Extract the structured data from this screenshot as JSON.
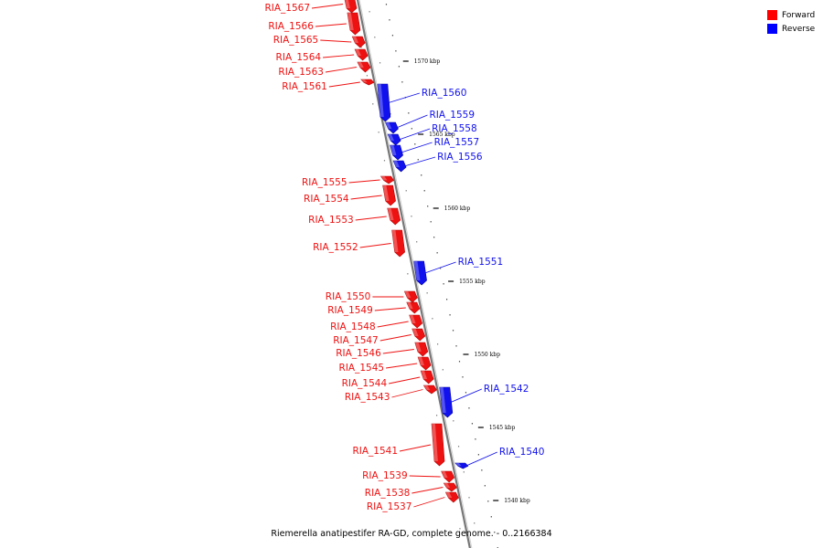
{
  "caption": "Riemerella anatipestifer RA-GD, complete genome. - 0..2166384",
  "legend": [
    {
      "label": "Forward",
      "color": "#ff0000"
    },
    {
      "label": "Reverse",
      "color": "#0000ff"
    }
  ],
  "colors": {
    "forward": "#ee1111",
    "reverse": "#1111ee",
    "axis": "#777777"
  },
  "scale_ticks": [
    "1570 kbp",
    "1565 kbp",
    "1560 kbp",
    "1555 kbp",
    "1550 kbp",
    "1545 kbp",
    "1540 kbp"
  ],
  "genes": [
    {
      "name": "RIA_1567",
      "strand": "forward"
    },
    {
      "name": "RIA_1566",
      "strand": "forward"
    },
    {
      "name": "RIA_1565",
      "strand": "forward"
    },
    {
      "name": "RIA_1564",
      "strand": "forward"
    },
    {
      "name": "RIA_1563",
      "strand": "forward"
    },
    {
      "name": "RIA_1561",
      "strand": "forward"
    },
    {
      "name": "RIA_1560",
      "strand": "reverse"
    },
    {
      "name": "RIA_1559",
      "strand": "reverse"
    },
    {
      "name": "RIA_1558",
      "strand": "reverse"
    },
    {
      "name": "RIA_1557",
      "strand": "reverse"
    },
    {
      "name": "RIA_1556",
      "strand": "reverse"
    },
    {
      "name": "RIA_1555",
      "strand": "forward"
    },
    {
      "name": "RIA_1554",
      "strand": "forward"
    },
    {
      "name": "RIA_1553",
      "strand": "forward"
    },
    {
      "name": "RIA_1552",
      "strand": "forward"
    },
    {
      "name": "RIA_1551",
      "strand": "reverse"
    },
    {
      "name": "RIA_1550",
      "strand": "forward"
    },
    {
      "name": "RIA_1549",
      "strand": "forward"
    },
    {
      "name": "RIA_1548",
      "strand": "forward"
    },
    {
      "name": "RIA_1547",
      "strand": "forward"
    },
    {
      "name": "RIA_1546",
      "strand": "forward"
    },
    {
      "name": "RIA_1545",
      "strand": "forward"
    },
    {
      "name": "RIA_1544",
      "strand": "forward"
    },
    {
      "name": "RIA_1543",
      "strand": "forward"
    },
    {
      "name": "RIA_1542",
      "strand": "reverse"
    },
    {
      "name": "RIA_1541",
      "strand": "forward"
    },
    {
      "name": "RIA_1540",
      "strand": "reverse"
    },
    {
      "name": "RIA_1539",
      "strand": "forward"
    },
    {
      "name": "RIA_1538",
      "strand": "forward"
    },
    {
      "name": "RIA_1537",
      "strand": "forward"
    }
  ]
}
